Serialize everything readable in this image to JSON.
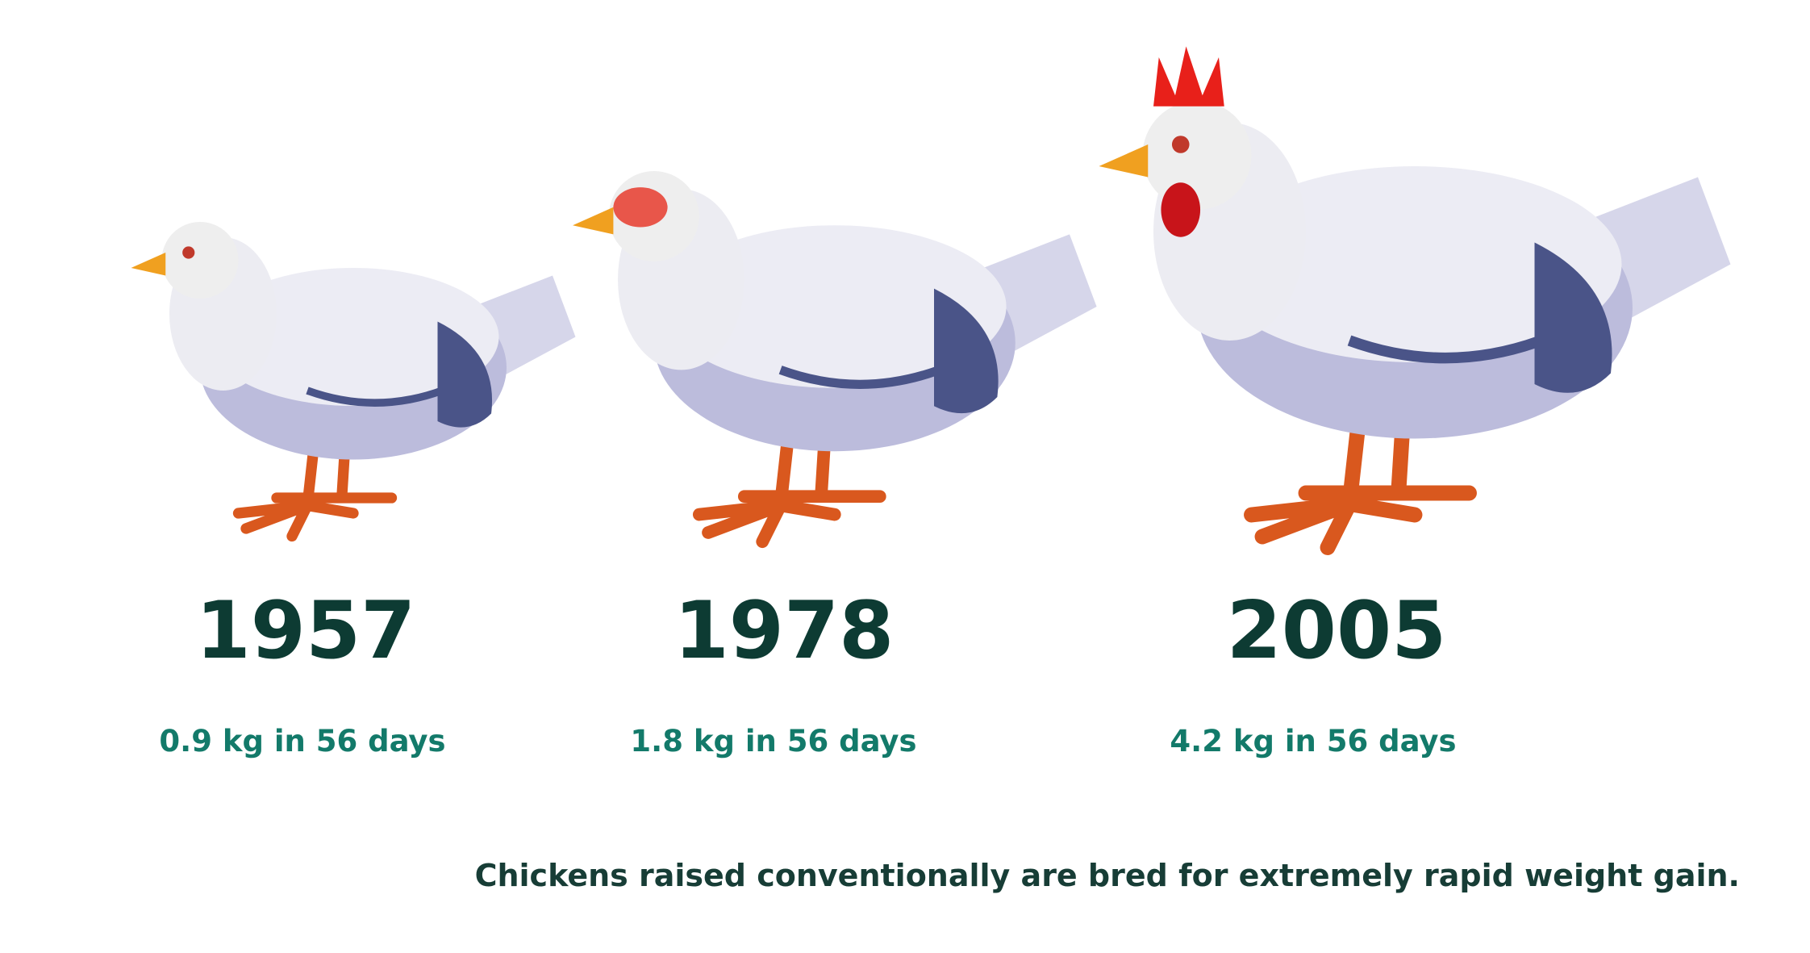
{
  "items": [
    {
      "year": "1957",
      "weight": "0.9 kg in 56 days"
    },
    {
      "year": "1978",
      "weight": "1.8 kg in 56 days"
    },
    {
      "year": "2005",
      "weight": "4.2 kg in 56 days"
    }
  ],
  "caption": "Chickens raised conventionally are bred for extremely rapid weight gain."
}
